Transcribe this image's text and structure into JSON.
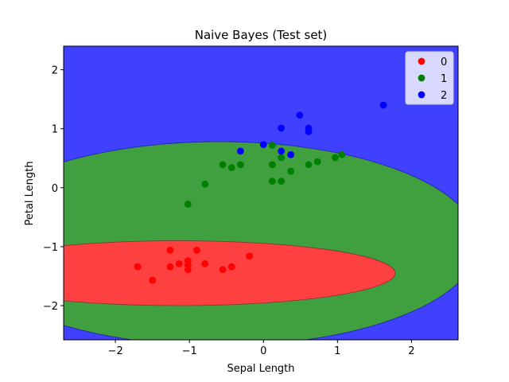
{
  "chart_data": {
    "type": "scatter",
    "title": "Naive Bayes (Test set)",
    "xlabel": "Sepal Length",
    "ylabel": "Petal Length",
    "xlim": [
      -2.7,
      2.63
    ],
    "ylim": [
      -2.58,
      2.4
    ],
    "xticks": [
      -2,
      -1,
      0,
      1,
      2
    ],
    "yticks": [
      -2,
      -1,
      0,
      1,
      2
    ],
    "xtick_labels": [
      "−2",
      "−1",
      "0",
      "1",
      "2"
    ],
    "ytick_labels": [
      "−2",
      "−1",
      "0",
      "1",
      "2"
    ],
    "grid": false,
    "legend_position": "top-right",
    "regions": [
      {
        "class": "2",
        "color": "#4040ff"
      },
      {
        "class": "1",
        "color": "#40a040"
      },
      {
        "class": "0",
        "color": "#ff4040"
      }
    ],
    "series": [
      {
        "name": "0",
        "color": "#ff0000",
        "points": [
          [
            -1.7,
            -1.34
          ],
          [
            -1.5,
            -1.57
          ],
          [
            -1.26,
            -1.06
          ],
          [
            -1.26,
            -1.34
          ],
          [
            -1.14,
            -1.29
          ],
          [
            -1.02,
            -1.24
          ],
          [
            -1.02,
            -1.31
          ],
          [
            -1.02,
            -1.39
          ],
          [
            -0.9,
            -1.06
          ],
          [
            -0.79,
            -1.29
          ],
          [
            -0.55,
            -1.39
          ],
          [
            -0.43,
            -1.34
          ],
          [
            -0.19,
            -1.16
          ]
        ]
      },
      {
        "name": "1",
        "color": "#008000",
        "points": [
          [
            -1.02,
            -0.28
          ],
          [
            -0.79,
            0.06
          ],
          [
            -0.55,
            0.39
          ],
          [
            -0.43,
            0.34
          ],
          [
            -0.31,
            0.39
          ],
          [
            0.12,
            0.72
          ],
          [
            0.12,
            0.39
          ],
          [
            0.12,
            0.11
          ],
          [
            0.24,
            0.51
          ],
          [
            0.24,
            0.11
          ],
          [
            0.37,
            0.28
          ],
          [
            0.61,
            0.39
          ],
          [
            0.73,
            0.44
          ],
          [
            0.97,
            0.51
          ],
          [
            1.06,
            0.56
          ]
        ]
      },
      {
        "name": "2",
        "color": "#0000ff",
        "points": [
          [
            -0.31,
            0.62
          ],
          [
            0.0,
            0.73
          ],
          [
            0.24,
            0.62
          ],
          [
            0.37,
            0.56
          ],
          [
            0.24,
            1.01
          ],
          [
            0.49,
            1.23
          ],
          [
            0.61,
            1.01
          ],
          [
            0.61,
            0.95
          ],
          [
            1.62,
            1.4
          ]
        ]
      }
    ]
  }
}
